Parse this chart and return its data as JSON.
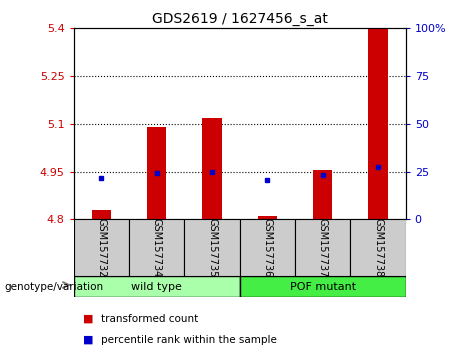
{
  "title": "GDS2619 / 1627456_s_at",
  "samples": [
    "GSM157732",
    "GSM157734",
    "GSM157735",
    "GSM157736",
    "GSM157737",
    "GSM157738"
  ],
  "red_values": [
    4.83,
    5.09,
    5.12,
    4.81,
    4.955,
    5.4
  ],
  "blue_values": [
    4.93,
    4.945,
    4.95,
    4.925,
    4.94,
    4.965
  ],
  "baseline": 4.8,
  "ylim": [
    4.8,
    5.4
  ],
  "yticks": [
    4.8,
    4.95,
    5.1,
    5.25,
    5.4
  ],
  "ytick_labels": [
    "4.8",
    "4.95",
    "5.1",
    "5.25",
    "5.4"
  ],
  "right_yticks": [
    0,
    25,
    50,
    75,
    100
  ],
  "right_ytick_labels": [
    "0",
    "25",
    "50",
    "75",
    "100%"
  ],
  "grid_lines": [
    4.95,
    5.1,
    5.25
  ],
  "bar_color": "#cc0000",
  "dot_color": "#0000cc",
  "bar_width": 0.35,
  "groups": [
    {
      "label": "wild type",
      "indices": [
        0,
        1,
        2
      ],
      "color": "#aaffaa"
    },
    {
      "label": "POF mutant",
      "indices": [
        3,
        4,
        5
      ],
      "color": "#44ee44"
    }
  ],
  "group_label": "genotype/variation",
  "legend_red": "transformed count",
  "legend_blue": "percentile rank within the sample",
  "tick_color_left": "#cc0000",
  "tick_color_right": "#0000cc",
  "background_plot": "#ffffff"
}
